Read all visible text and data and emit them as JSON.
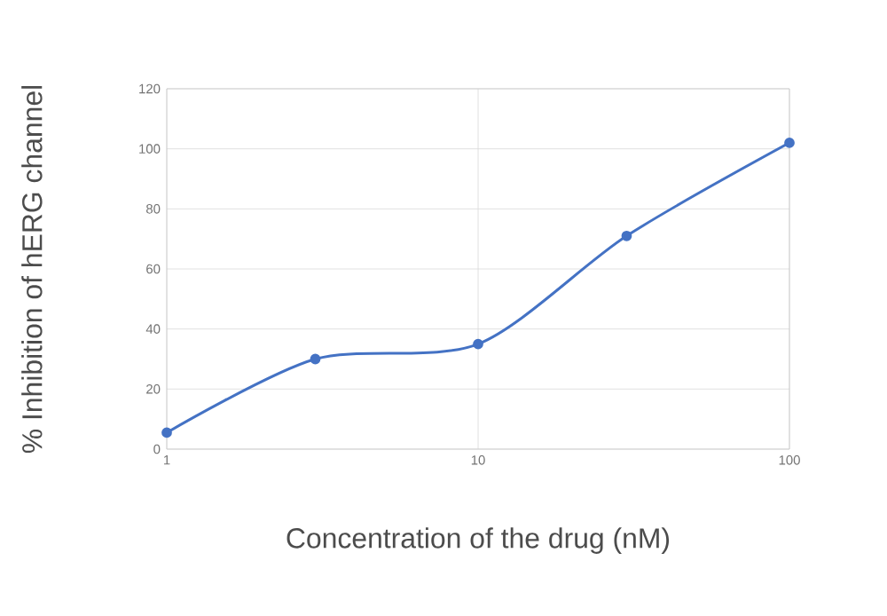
{
  "chart_data": {
    "type": "line",
    "xlabel": "Concentration of the drug (nM)",
    "ylabel": "% Inhibition of hERG channel",
    "x": [
      1,
      3,
      10,
      30,
      100
    ],
    "series": [
      {
        "color": "#4472c4",
        "values": [
          5.5,
          30,
          35,
          71,
          102
        ]
      }
    ],
    "log": "x",
    "xlim": [
      1,
      100
    ],
    "xticks": [
      1,
      10,
      100
    ],
    "ylim": [
      0,
      120
    ],
    "yticks": [
      0,
      20,
      40,
      60,
      80,
      100,
      120
    ],
    "grid": true,
    "marker": "circle",
    "line_style": "solid"
  }
}
